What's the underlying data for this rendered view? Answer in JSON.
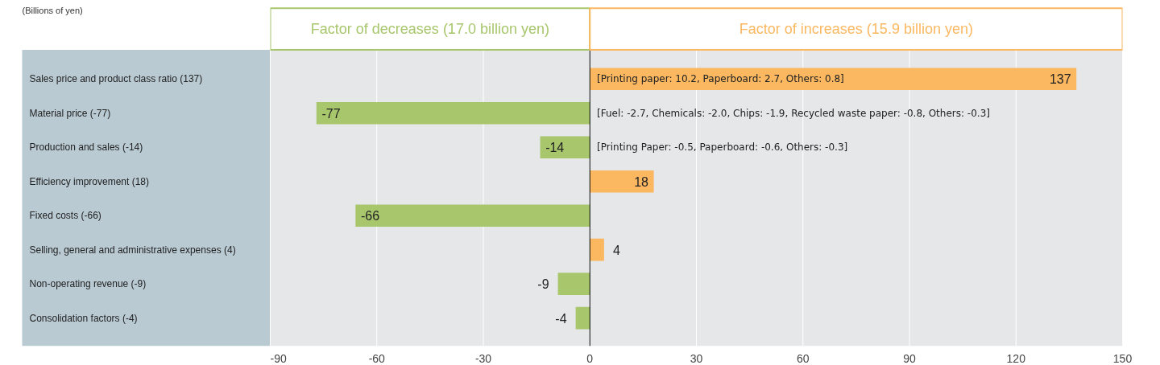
{
  "chart_data": {
    "type": "bar",
    "orientation": "horizontal",
    "categories": [
      "Sales price and product class ratio (137)",
      "Material price (-77)",
      "Production and sales (-14)",
      "Efficiency improvement (18)",
      "Fixed costs (-66)",
      "Selling, general and administrative expenses (4)",
      "Non-operating revenue (-9)",
      "Consolidation factors (-4)"
    ],
    "values": [
      137,
      -77,
      -14,
      18,
      -66,
      4,
      -9,
      -4
    ],
    "colors": [
      "#fbb860",
      "#a8c66c",
      "#a8c66c",
      "#fbb860",
      "#a8c66c",
      "#fbb860",
      "#a8c66c",
      "#a8c66c"
    ],
    "xlim": [
      -90,
      150
    ],
    "xticks": [
      -90,
      -60,
      -30,
      0,
      30,
      60,
      90,
      120,
      150
    ],
    "grid": "x",
    "data_labels": true,
    "ref_lines": [
      {
        "axis": "x",
        "value": 0,
        "color": "#000000"
      }
    ],
    "annotations": [
      "(Billions of yen)",
      "Factor of decreases (17.0 billion yen)",
      "Factor of increases (15.9 billion yen)",
      "[Printing paper: 10.2, Paperboard: 2.7, Others: 0.8]",
      "[Fuel: -2.7, Chemicals: -2.0, Chips: -1.9, Recycled waste paper: -0.8, Others: -0.3]",
      "[Printing Paper: -0.5, Paperboard: -0.6, Others: -0.3]"
    ]
  }
}
